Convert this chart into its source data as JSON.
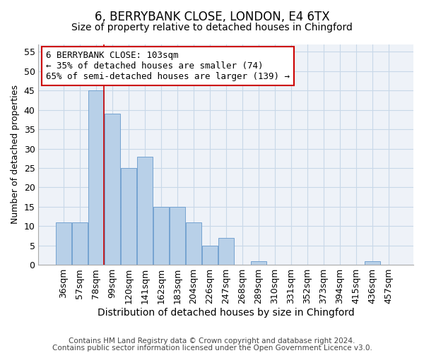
{
  "title": "6, BERRYBANK CLOSE, LONDON, E4 6TX",
  "subtitle": "Size of property relative to detached houses in Chingford",
  "xlabel": "Distribution of detached houses by size in Chingford",
  "ylabel": "Number of detached properties",
  "categories": [
    "36sqm",
    "57sqm",
    "78sqm",
    "99sqm",
    "120sqm",
    "141sqm",
    "162sqm",
    "183sqm",
    "204sqm",
    "226sqm",
    "247sqm",
    "268sqm",
    "289sqm",
    "310sqm",
    "331sqm",
    "352sqm",
    "373sqm",
    "394sqm",
    "415sqm",
    "436sqm",
    "457sqm"
  ],
  "values": [
    11,
    11,
    45,
    39,
    25,
    28,
    15,
    15,
    11,
    5,
    7,
    0,
    1,
    0,
    0,
    0,
    0,
    0,
    0,
    1,
    0
  ],
  "bar_color": "#b8d0e8",
  "bar_edge_color": "#6699cc",
  "annotation_line_color": "#cc0000",
  "annotation_box_text_line1": "6 BERRYBANK CLOSE: 103sqm",
  "annotation_box_text_line2": "← 35% of detached houses are smaller (74)",
  "annotation_box_text_line3": "65% of semi-detached houses are larger (139) →",
  "annotation_box_color": "#cc0000",
  "ylim": [
    0,
    57
  ],
  "yticks": [
    0,
    5,
    10,
    15,
    20,
    25,
    30,
    35,
    40,
    45,
    50,
    55
  ],
  "grid_color": "#c8d8e8",
  "background_color": "#eef2f8",
  "footer_line1": "Contains HM Land Registry data © Crown copyright and database right 2024.",
  "footer_line2": "Contains public sector information licensed under the Open Government Licence v3.0.",
  "title_fontsize": 12,
  "subtitle_fontsize": 10,
  "xlabel_fontsize": 10,
  "ylabel_fontsize": 9,
  "tick_fontsize": 9,
  "annotation_fontsize": 9,
  "footer_fontsize": 7.5
}
